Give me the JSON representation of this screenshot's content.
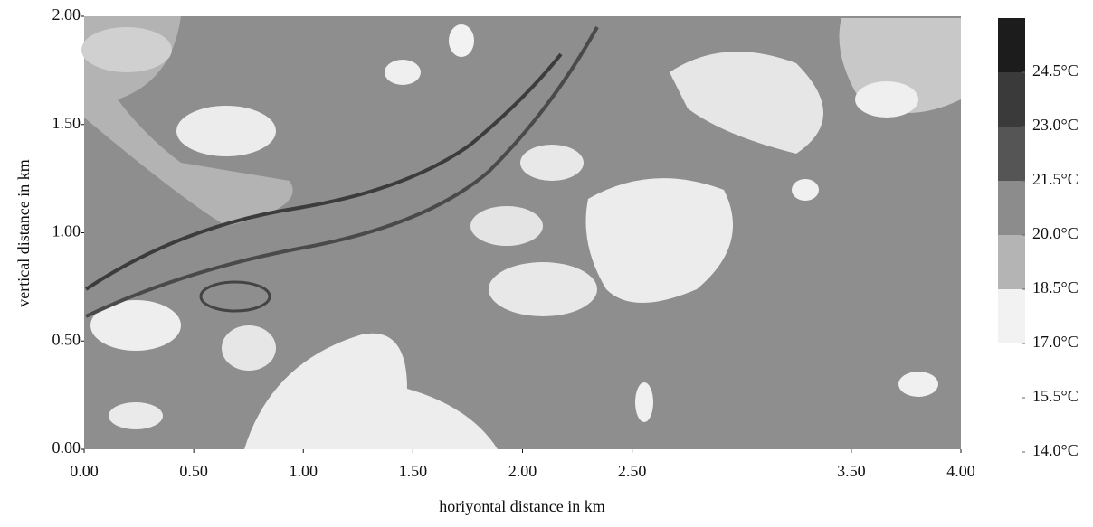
{
  "chart_data": {
    "type": "heatmap",
    "xlabel": "horiyontal distance in km",
    "ylabel": "vertical distance in km",
    "xlim": [
      0,
      4
    ],
    "ylim": [
      0,
      2
    ],
    "xticks": [
      {
        "value": 0,
        "label": "0.00"
      },
      {
        "value": 0.5,
        "label": "0.50"
      },
      {
        "value": 1,
        "label": "1.00"
      },
      {
        "value": 1.5,
        "label": "1.50"
      },
      {
        "value": 2,
        "label": "2.00"
      },
      {
        "value": 2.5,
        "label": "2.50"
      },
      {
        "value": 3.5,
        "label": "3.50"
      },
      {
        "value": 4,
        "label": "4.00"
      }
    ],
    "yticks": [
      {
        "value": 0,
        "label": "0.00"
      },
      {
        "value": 0.5,
        "label": "0.50"
      },
      {
        "value": 1,
        "label": "1.00"
      },
      {
        "value": 1.5,
        "label": "1.50"
      },
      {
        "value": 2,
        "label": "2.00"
      }
    ],
    "colorbar": {
      "lim": [
        14,
        26
      ],
      "ticks": [
        {
          "value": 24.5,
          "label": "24.5°C"
        },
        {
          "value": 23,
          "label": "23.0°C"
        },
        {
          "value": 21.5,
          "label": "21.5°C"
        },
        {
          "value": 20,
          "label": "20.0°C"
        },
        {
          "value": 18.5,
          "label": "18.5°C"
        },
        {
          "value": 17,
          "label": "17.0°C"
        },
        {
          "value": 15.5,
          "label": "15.5°C"
        },
        {
          "value": 14,
          "label": "14.0°C"
        }
      ],
      "bands": [
        {
          "from": 17,
          "to": 18.5,
          "color": "#f2f2f2"
        },
        {
          "from": 18.5,
          "to": 20,
          "color": "#b4b4b4"
        },
        {
          "from": 20,
          "to": 21.5,
          "color": "#8c8c8c"
        },
        {
          "from": 21.5,
          "to": 23,
          "color": "#555555"
        },
        {
          "from": 23,
          "to": 24.5,
          "color": "#3a3a3a"
        },
        {
          "from": 24.5,
          "to": 26,
          "color": "#1c1c1c"
        }
      ]
    }
  }
}
